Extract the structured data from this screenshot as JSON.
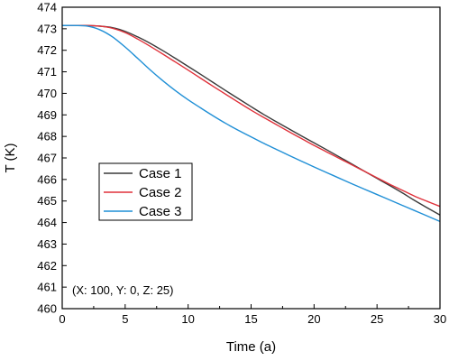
{
  "chart_data": {
    "type": "line",
    "title": "",
    "xlabel": "Time (a)",
    "ylabel": "T (K)",
    "xlim": [
      0,
      30
    ],
    "ylim": [
      460,
      474
    ],
    "xticks": [
      0,
      5,
      10,
      15,
      20,
      25,
      30
    ],
    "yticks": [
      460,
      461,
      462,
      463,
      464,
      465,
      466,
      467,
      468,
      469,
      470,
      471,
      472,
      473,
      474
    ],
    "grid": false,
    "legend_position": "center-left",
    "annotation": "(X: 100, Y: 0, Z: 25)",
    "x": [
      0,
      1,
      2,
      3,
      4,
      5,
      6,
      7,
      8,
      9,
      10,
      11,
      12,
      13,
      14,
      15,
      16,
      17,
      18,
      19,
      20,
      21,
      22,
      23,
      24,
      25,
      26,
      27,
      28,
      29,
      30
    ],
    "series": [
      {
        "name": "Case 1",
        "color": "#3a3a3a",
        "values": [
          473.15,
          473.15,
          473.15,
          473.12,
          473.05,
          472.88,
          472.62,
          472.32,
          471.98,
          471.62,
          471.25,
          470.88,
          470.5,
          470.12,
          469.75,
          469.38,
          469.02,
          468.68,
          468.35,
          468.02,
          467.7,
          467.38,
          467.05,
          466.72,
          466.38,
          466.05,
          465.72,
          465.38,
          465.02,
          464.68,
          464.35
        ]
      },
      {
        "name": "Case 2",
        "color": "#e0313a",
        "values": [
          473.15,
          473.15,
          473.15,
          473.12,
          473.02,
          472.82,
          472.52,
          472.18,
          471.82,
          471.45,
          471.08,
          470.7,
          470.32,
          469.95,
          469.58,
          469.22,
          468.88,
          468.55,
          468.22,
          467.9,
          467.58,
          467.28,
          466.98,
          466.68,
          466.38,
          466.08,
          465.78,
          465.5,
          465.22,
          464.98,
          464.75
        ]
      },
      {
        "name": "Case 3",
        "color": "#1f8fd6",
        "values": [
          473.15,
          473.15,
          473.12,
          472.95,
          472.62,
          472.15,
          471.62,
          471.08,
          470.58,
          470.12,
          469.7,
          469.32,
          468.95,
          468.6,
          468.28,
          467.98,
          467.68,
          467.4,
          467.12,
          466.85,
          466.58,
          466.32,
          466.06,
          465.8,
          465.55,
          465.3,
          465.05,
          464.8,
          464.55,
          464.3,
          464.05
        ]
      }
    ]
  }
}
